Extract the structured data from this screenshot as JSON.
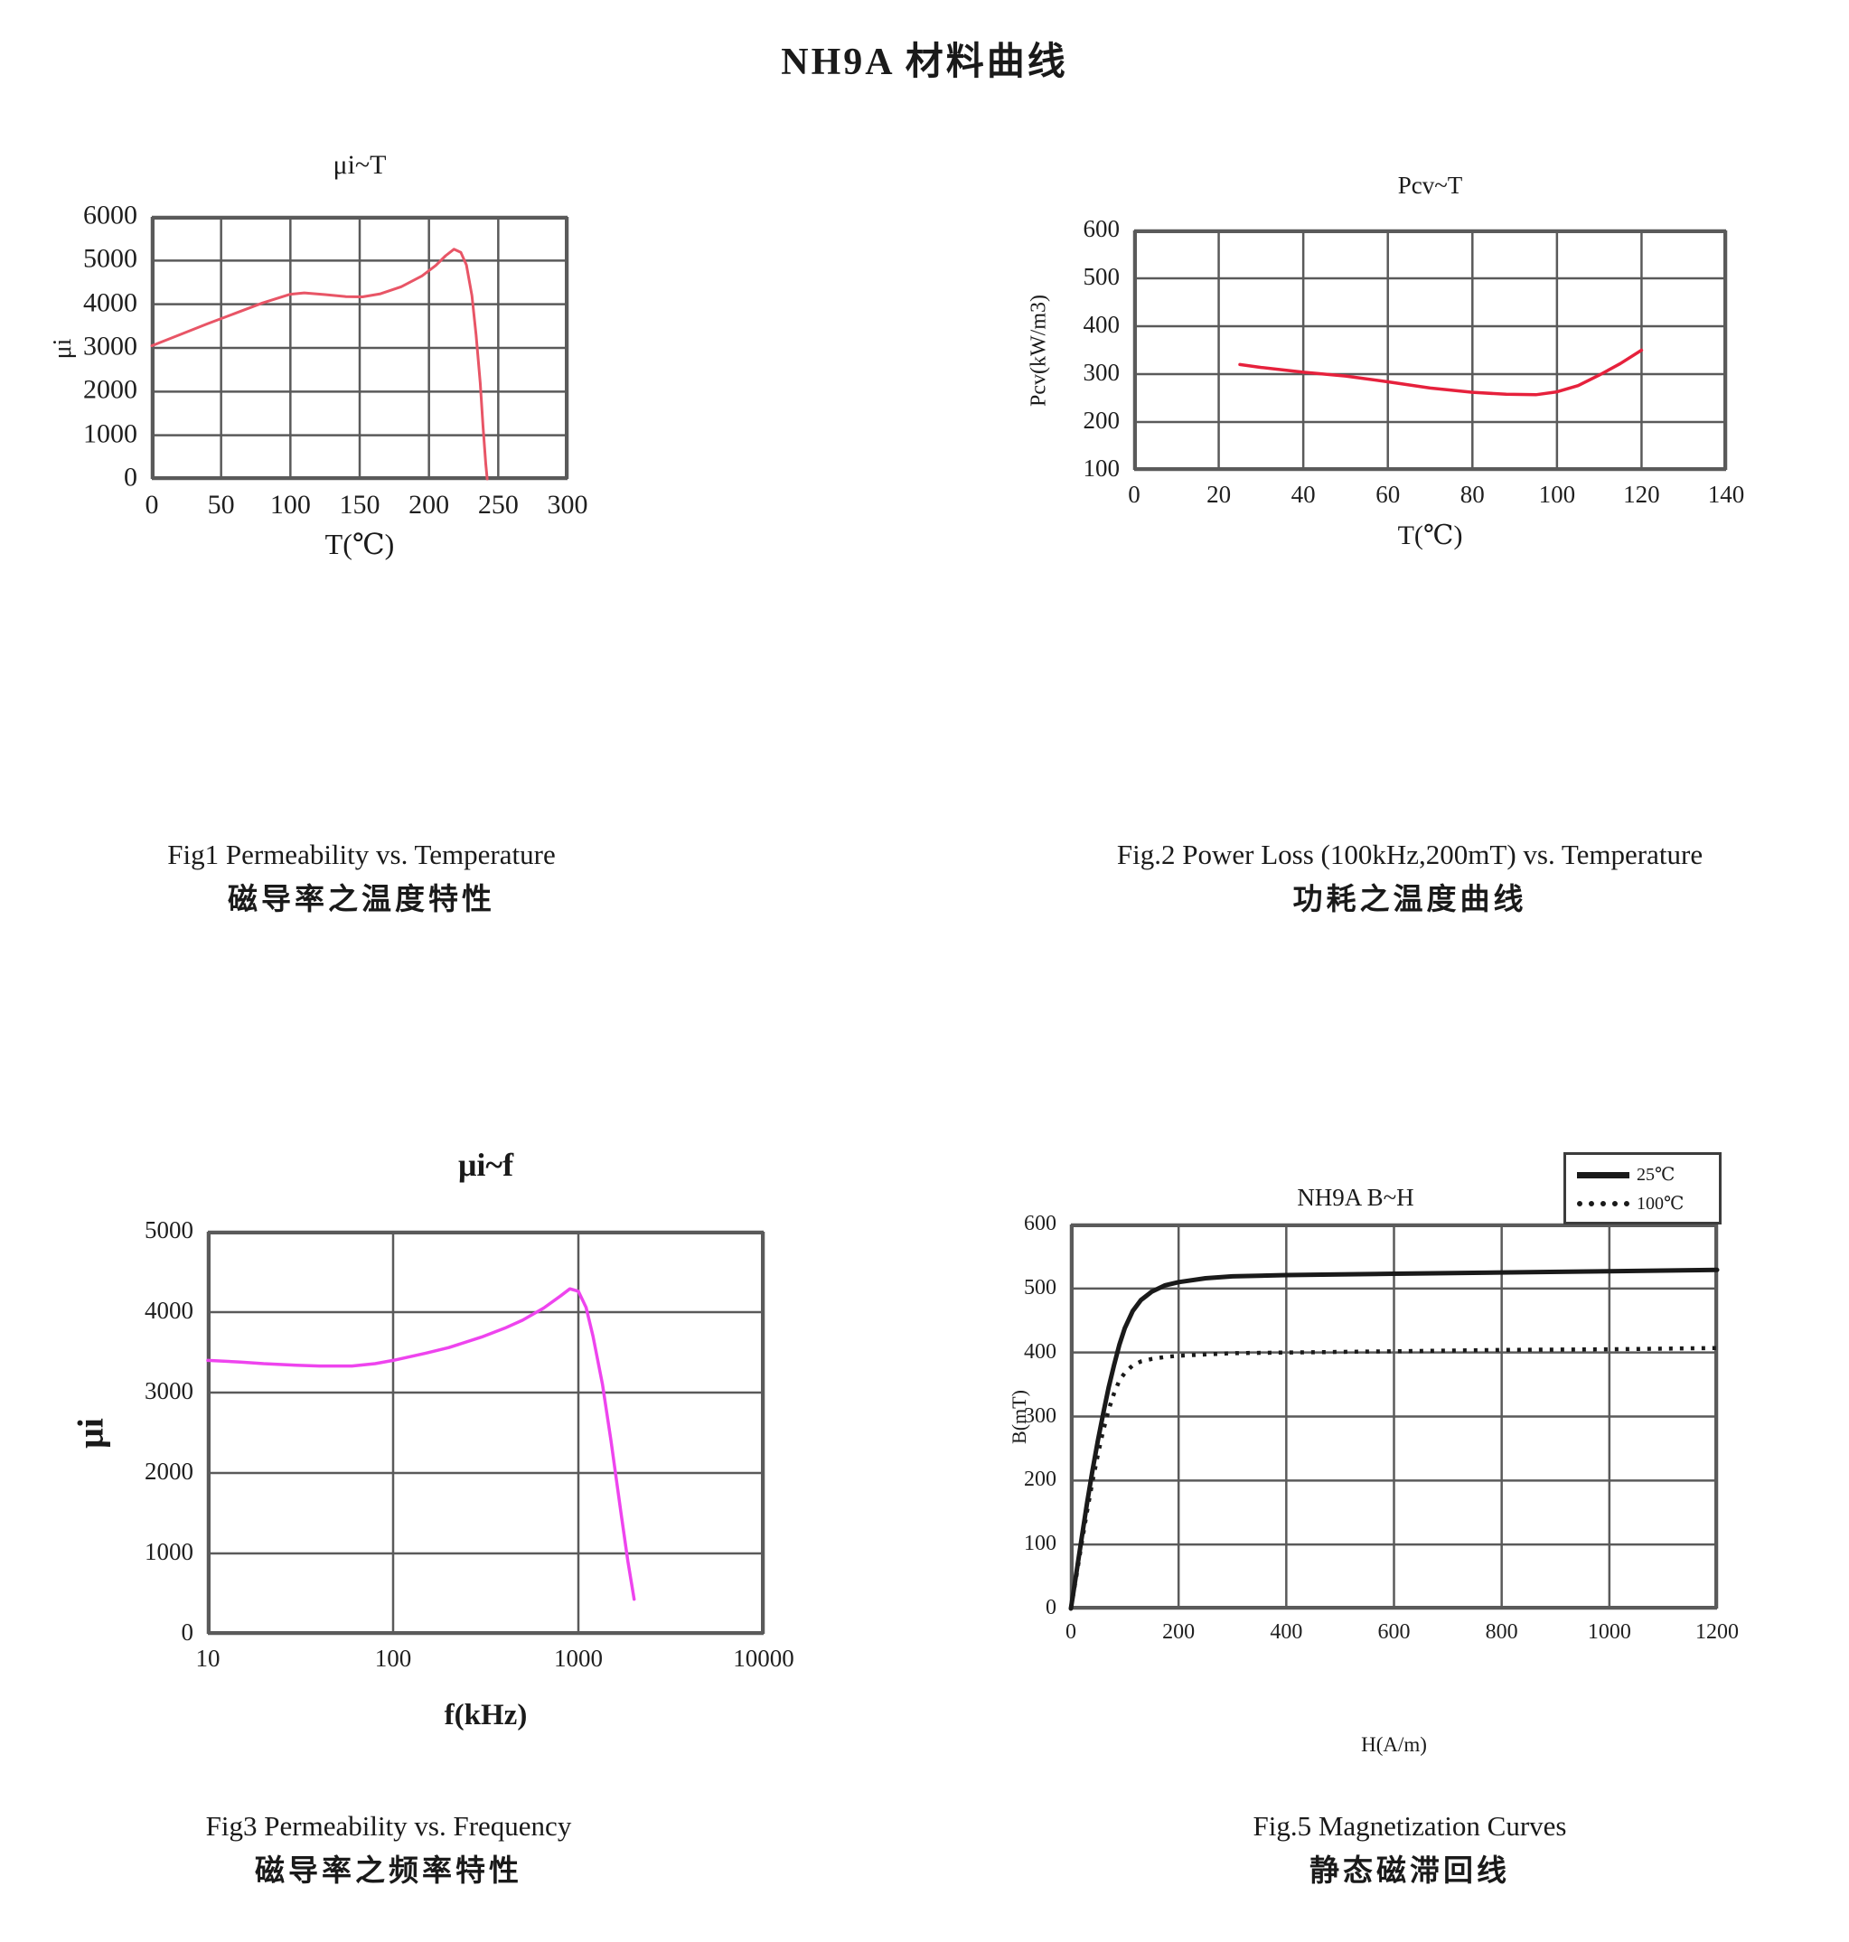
{
  "page": {
    "title": "NH9A 材料曲线",
    "background": "#ffffff",
    "text_color": "#1a1a1a",
    "grid_color": "#5a5a5a"
  },
  "figures": [
    {
      "caption_en": "Fig1  Permeability vs. Temperature",
      "caption_zh": "磁导率之温度特性"
    },
    {
      "caption_en": "Fig.2 Power Loss (100kHz,200mT) vs. Temperature",
      "caption_zh": "功耗之温度曲线"
    },
    {
      "caption_en": "Fig3 Permeability vs. Frequency",
      "caption_zh": "磁导率之频率特性"
    },
    {
      "caption_en": "Fig.5 Magnetization Curves",
      "caption_zh": "静态磁滞回线"
    }
  ],
  "chart_data": [
    {
      "type": "line",
      "title": "μi~T",
      "xlabel": "T(℃)",
      "ylabel": "μi",
      "x_scale": "linear",
      "xlim": [
        0,
        300
      ],
      "ylim": [
        0,
        6000
      ],
      "x_ticks": [
        0,
        50,
        100,
        150,
        200,
        250,
        300
      ],
      "y_ticks": [
        0,
        1000,
        2000,
        3000,
        4000,
        5000,
        6000
      ],
      "grid": true,
      "legend": null,
      "series": [
        {
          "name": "μi",
          "color": "#e85566",
          "style": "solid",
          "width": 3,
          "points": [
            [
              0,
              3050
            ],
            [
              20,
              3300
            ],
            [
              40,
              3550
            ],
            [
              60,
              3790
            ],
            [
              80,
              4030
            ],
            [
              100,
              4230
            ],
            [
              110,
              4260
            ],
            [
              125,
              4220
            ],
            [
              140,
              4175
            ],
            [
              152,
              4170
            ],
            [
              165,
              4240
            ],
            [
              180,
              4400
            ],
            [
              195,
              4650
            ],
            [
              205,
              4890
            ],
            [
              212,
              5110
            ],
            [
              218,
              5260
            ],
            [
              223,
              5190
            ],
            [
              227,
              4900
            ],
            [
              231,
              4200
            ],
            [
              234,
              3300
            ],
            [
              237,
              2200
            ],
            [
              239,
              1200
            ],
            [
              241,
              350
            ],
            [
              242,
              0
            ]
          ]
        }
      ]
    },
    {
      "type": "line",
      "title": "Pcv~T",
      "xlabel": "T(℃)",
      "ylabel": "Pcv(kW/m3)",
      "x_scale": "linear",
      "xlim": [
        0,
        140
      ],
      "ylim": [
        100,
        600
      ],
      "x_ticks": [
        0,
        20,
        40,
        60,
        80,
        100,
        120,
        140
      ],
      "y_ticks": [
        100,
        200,
        300,
        400,
        500,
        600
      ],
      "grid": true,
      "legend": null,
      "series": [
        {
          "name": "Pcv",
          "color": "#e6213c",
          "style": "solid",
          "width": 3.5,
          "points": [
            [
              25,
              320
            ],
            [
              30,
              314
            ],
            [
              40,
              304
            ],
            [
              50,
              296
            ],
            [
              60,
              284
            ],
            [
              70,
              271
            ],
            [
              80,
              262
            ],
            [
              88,
              258
            ],
            [
              95,
              257
            ],
            [
              100,
              263
            ],
            [
              105,
              276
            ],
            [
              110,
              298
            ],
            [
              115,
              322
            ],
            [
              120,
              350
            ]
          ]
        }
      ]
    },
    {
      "type": "line",
      "title": "μi~f",
      "xlabel": "f(kHz)",
      "ylabel": "μi",
      "x_scale": "log",
      "xlim": [
        10,
        10000
      ],
      "ylim": [
        0,
        5000
      ],
      "x_ticks": [
        10,
        100,
        1000,
        10000
      ],
      "y_ticks": [
        0,
        1000,
        2000,
        3000,
        4000,
        5000
      ],
      "grid": true,
      "legend": null,
      "series": [
        {
          "name": "μi",
          "color": "#ee44ee",
          "style": "solid",
          "width": 3.5,
          "points": [
            [
              10,
              3400
            ],
            [
              15,
              3380
            ],
            [
              20,
              3360
            ],
            [
              30,
              3340
            ],
            [
              40,
              3330
            ],
            [
              60,
              3330
            ],
            [
              80,
              3360
            ],
            [
              100,
              3400
            ],
            [
              150,
              3490
            ],
            [
              200,
              3560
            ],
            [
              300,
              3690
            ],
            [
              400,
              3800
            ],
            [
              500,
              3900
            ],
            [
              650,
              4050
            ],
            [
              800,
              4200
            ],
            [
              900,
              4290
            ],
            [
              1000,
              4260
            ],
            [
              1100,
              4060
            ],
            [
              1200,
              3700
            ],
            [
              1350,
              3100
            ],
            [
              1500,
              2400
            ],
            [
              1700,
              1500
            ],
            [
              1850,
              900
            ],
            [
              2000,
              430
            ]
          ]
        }
      ]
    },
    {
      "type": "line",
      "title": "NH9A B~H",
      "xlabel": "H(A/m)",
      "ylabel": "B(mT)",
      "x_scale": "linear",
      "xlim": [
        0,
        1200
      ],
      "ylim": [
        0,
        600
      ],
      "x_ticks": [
        0,
        200,
        400,
        600,
        800,
        1000,
        1200
      ],
      "y_ticks": [
        0,
        100,
        200,
        300,
        400,
        500,
        600
      ],
      "grid": true,
      "legend": {
        "position": "top-right",
        "entries": [
          "25℃",
          "100℃"
        ]
      },
      "series": [
        {
          "name": "25℃",
          "color": "#1a1a1a",
          "style": "solid",
          "width": 5,
          "points": [
            [
              0,
              0
            ],
            [
              10,
              55
            ],
            [
              20,
              110
            ],
            [
              30,
              165
            ],
            [
              40,
              215
            ],
            [
              50,
              262
            ],
            [
              60,
              305
            ],
            [
              70,
              345
            ],
            [
              80,
              380
            ],
            [
              90,
              412
            ],
            [
              100,
              438
            ],
            [
              115,
              465
            ],
            [
              130,
              482
            ],
            [
              150,
              495
            ],
            [
              175,
              505
            ],
            [
              200,
              510
            ],
            [
              250,
              516
            ],
            [
              300,
              519
            ],
            [
              400,
              521
            ],
            [
              500,
              522
            ],
            [
              600,
              523
            ],
            [
              800,
              525
            ],
            [
              1000,
              527
            ],
            [
              1200,
              529
            ]
          ]
        },
        {
          "name": "100℃",
          "color": "#1a1a1a",
          "style": "dotted",
          "width": 4.5,
          "points": [
            [
              0,
              0
            ],
            [
              10,
              50
            ],
            [
              20,
              102
            ],
            [
              30,
              152
            ],
            [
              40,
              198
            ],
            [
              50,
              240
            ],
            [
              60,
              278
            ],
            [
              70,
              310
            ],
            [
              80,
              336
            ],
            [
              90,
              356
            ],
            [
              100,
              368
            ],
            [
              115,
              380
            ],
            [
              130,
              386
            ],
            [
              150,
              390
            ],
            [
              175,
              393
            ],
            [
              200,
              395
            ],
            [
              250,
              397
            ],
            [
              300,
              399
            ],
            [
              400,
              400
            ],
            [
              500,
              401
            ],
            [
              600,
              402
            ],
            [
              800,
              404
            ],
            [
              1000,
              405
            ],
            [
              1200,
              407
            ]
          ]
        }
      ]
    }
  ]
}
